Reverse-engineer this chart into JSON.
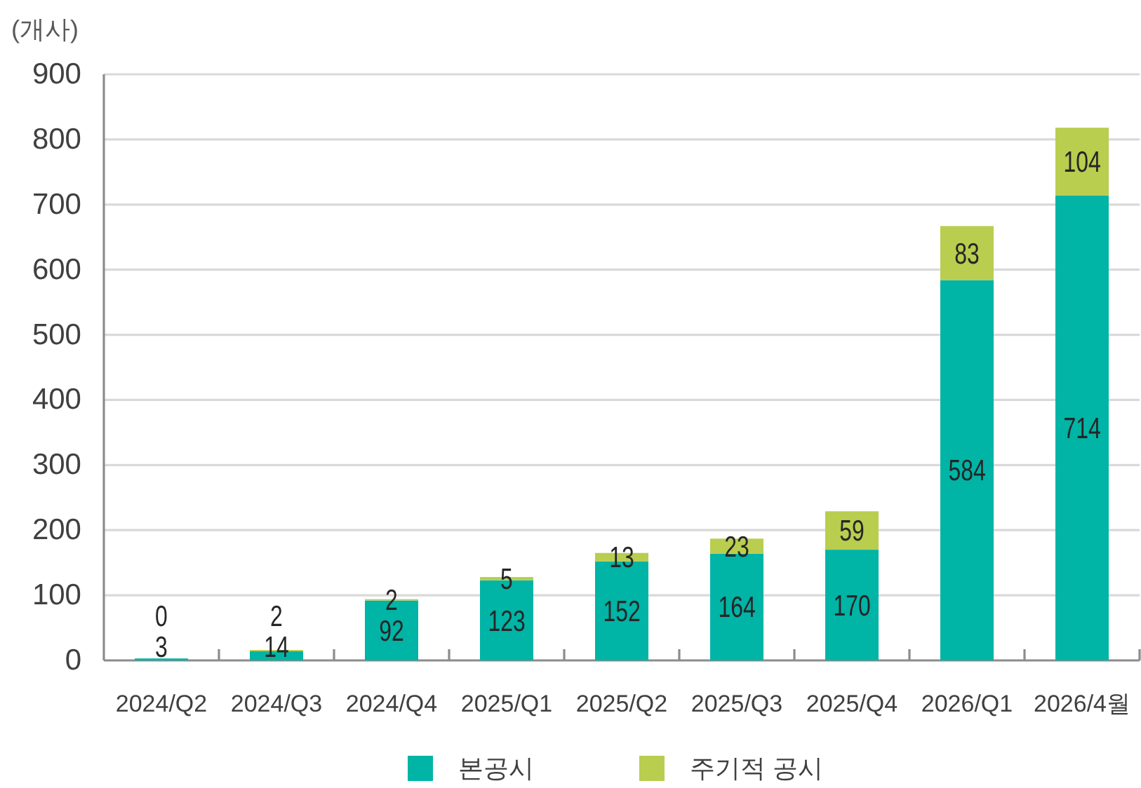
{
  "chart_data": {
    "type": "bar",
    "stacked": true,
    "ylabel": "(개사)",
    "categories": [
      "2024/Q2",
      "2024/Q3",
      "2024/Q4",
      "2025/Q1",
      "2025/Q2",
      "2025/Q3",
      "2025/Q4",
      "2026/Q1",
      "2026/4월"
    ],
    "series": [
      {
        "name": "본공시",
        "color": "#00b4a6",
        "values": [
          3,
          14,
          92,
          123,
          152,
          164,
          170,
          584,
          714
        ]
      },
      {
        "name": "주기적 공시",
        "color": "#b9cd4f",
        "values": [
          0,
          2,
          2,
          5,
          13,
          23,
          59,
          83,
          104
        ]
      }
    ],
    "ylim": [
      0,
      900
    ],
    "yticks": [
      0,
      100,
      200,
      300,
      400,
      500,
      600,
      700,
      800,
      900
    ],
    "grid": "y",
    "legend": "bottom",
    "data_labels": true
  }
}
